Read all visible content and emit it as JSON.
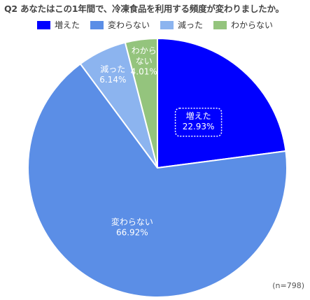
{
  "title": "Q2 あなたはこの1年間で、冷凍食品を利用する頻度が変わりましたか。",
  "note": "(n=798)",
  "chart_data": {
    "type": "pie",
    "title": "Q2 あなたはこの1年間で、冷凍食品を利用する頻度が変わりましたか。",
    "legend_position": "top",
    "slices": [
      {
        "label": "増えた",
        "value": 22.93,
        "value_label": "22.93%",
        "color": "#0000ff"
      },
      {
        "label": "変わらない",
        "value": 66.92,
        "value_label": "66.92%",
        "color": "#5b8ee6"
      },
      {
        "label": "減った",
        "value": 6.14,
        "value_label": "6.14%",
        "color": "#8cb4ef"
      },
      {
        "label": "わからない",
        "value": 4.01,
        "value_label": "4.01%",
        "color": "#94c47d"
      }
    ]
  }
}
